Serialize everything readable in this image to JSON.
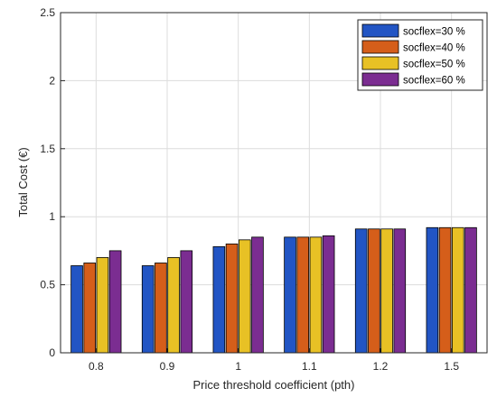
{
  "chart_data": {
    "type": "bar",
    "title": "",
    "xlabel": "Price threshold coefficient (pth)",
    "ylabel": "Total Cost (€)",
    "ylim": [
      0,
      2.5
    ],
    "yticks": [
      "0",
      "0.5",
      "1",
      "1.5",
      "2",
      "2.5"
    ],
    "ytick_values": [
      0,
      0.5,
      1,
      1.5,
      2,
      2.5
    ],
    "categories": [
      "0.8",
      "0.9",
      "1",
      "1.1",
      "1.2",
      "1.5"
    ],
    "grid": true,
    "legend_position": "top-right",
    "series": [
      {
        "name": "socflex=30 %",
        "color": "#2255c4",
        "values": [
          0.64,
          0.64,
          0.78,
          0.85,
          0.91,
          0.92
        ]
      },
      {
        "name": "socflex=40 %",
        "color": "#d55e1a",
        "values": [
          0.66,
          0.66,
          0.8,
          0.85,
          0.91,
          0.92
        ]
      },
      {
        "name": "socflex=50 %",
        "color": "#e8c125",
        "values": [
          0.7,
          0.7,
          0.83,
          0.85,
          0.91,
          0.92
        ]
      },
      {
        "name": "socflex=60 %",
        "color": "#7b2d91",
        "values": [
          0.75,
          0.75,
          0.85,
          0.86,
          0.91,
          0.92
        ]
      }
    ]
  }
}
